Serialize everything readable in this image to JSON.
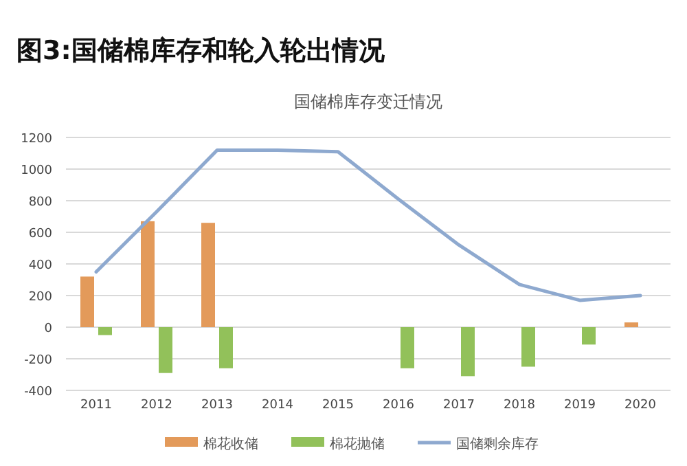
{
  "chart_data": {
    "type": "bar",
    "title": "图3:国储棉库存和轮入轮出情况",
    "subtitle": "国储棉库存变迁情况",
    "categories": [
      "2011",
      "2012",
      "2013",
      "2014",
      "2015",
      "2016",
      "2017",
      "2018",
      "2019",
      "2020"
    ],
    "series": [
      {
        "name": "棉花收储",
        "color": "#e39a5a",
        "values": [
          320,
          670,
          660,
          null,
          null,
          null,
          null,
          null,
          null,
          30
        ]
      },
      {
        "name": "棉花抛储",
        "color": "#92c15a",
        "values": [
          -50,
          -290,
          -260,
          null,
          null,
          -260,
          -310,
          -250,
          -110,
          null
        ]
      },
      {
        "name": "国储剩余库存",
        "type": "line",
        "color": "#8ea9cf",
        "values": [
          350,
          730,
          1120,
          1120,
          1110,
          810,
          520,
          270,
          170,
          200
        ]
      }
    ],
    "ylim": [
      -400,
      1200
    ],
    "yticks": [
      -400,
      -200,
      0,
      200,
      400,
      600,
      800,
      1000,
      1200
    ],
    "grid": "y",
    "legend": "bottom",
    "marker": "none",
    "line_style": "solid"
  }
}
